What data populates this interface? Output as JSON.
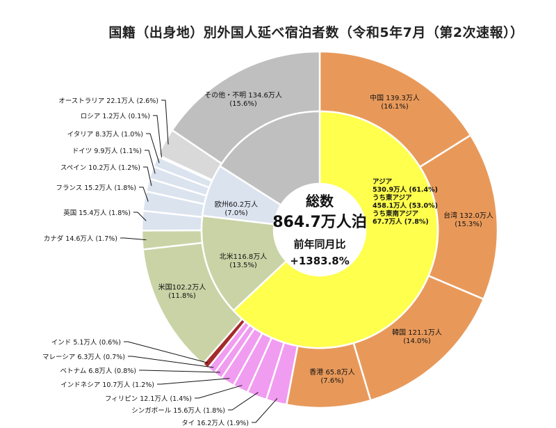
{
  "chart_data": {
    "type": "pie",
    "title": "国籍（出身地）別外国人延べ宿泊者数（令和5年7月（第2次速報））",
    "center": {
      "label": "総数",
      "total": "864.7万人泊",
      "compare_label": "前年同月比",
      "compare_value": "+1383.8%"
    },
    "inner_ring": [
      {
        "id": "asia",
        "lines": [
          "アジア",
          "530.9万人 (61.4%)",
          "うち東アジア",
          "458.1万人 (53.0%)",
          "うち東南アジア",
          "67.7万人 (7.8%)"
        ],
        "value": 530.9,
        "percent": 61.4,
        "color": "#ffff4d"
      },
      {
        "id": "north-america",
        "lines": [
          "北米116.8万人",
          "(13.5%)"
        ],
        "value": 116.8,
        "percent": 13.5,
        "color": "#c9d3a6"
      },
      {
        "id": "europe",
        "lines": [
          "欧州60.2万人",
          "(7.0%)"
        ],
        "value": 60.2,
        "percent": 7.0,
        "color": "#dbe3ef"
      },
      {
        "id": "other",
        "lines": [
          "その他・不明 134.6万人",
          "(15.6%)"
        ],
        "value": 134.6,
        "percent": 15.6,
        "color": "#bfbfbf"
      }
    ],
    "outer_ring": [
      {
        "id": "china",
        "name": "中国",
        "value": 139.3,
        "percent": 16.1,
        "label": "中国 139.3万人",
        "sub": "(16.1%)",
        "color": "#e8995a"
      },
      {
        "id": "taiwan",
        "name": "台湾",
        "value": 132.0,
        "percent": 15.3,
        "label": "台湾 132.0万人",
        "sub": "(15.3%)",
        "color": "#e8995a"
      },
      {
        "id": "korea",
        "name": "韓国",
        "value": 121.1,
        "percent": 14.0,
        "label": "韓国 121.1万人",
        "sub": "(14.0%)",
        "color": "#e8995a"
      },
      {
        "id": "hongkong",
        "name": "香港",
        "value": 65.8,
        "percent": 7.6,
        "label": "香港 65.8万人",
        "sub": "(7.6%)",
        "color": "#e8995a"
      },
      {
        "id": "thailand",
        "name": "タイ",
        "value": 16.2,
        "percent": 1.9,
        "label": "タイ 16.2万人 (1.9%)",
        "color": "#f09cf0"
      },
      {
        "id": "singapore",
        "name": "シンガポール",
        "value": 15.6,
        "percent": 1.8,
        "label": "シンガポール 15.6万人 (1.8%)",
        "color": "#f09cf0"
      },
      {
        "id": "philippines",
        "name": "フィリピン",
        "value": 12.1,
        "percent": 1.4,
        "label": "フィリピン 12.1万人 (1.4%)",
        "color": "#f09cf0"
      },
      {
        "id": "indonesia",
        "name": "インドネシア",
        "value": 10.7,
        "percent": 1.2,
        "label": "インドネシア 10.7万人 (1.2%)",
        "color": "#f09cf0"
      },
      {
        "id": "vietnam",
        "name": "ベトナム",
        "value": 6.8,
        "percent": 0.8,
        "label": "ベトナム 6.8万人 (0.8%)",
        "color": "#f09cf0"
      },
      {
        "id": "malaysia",
        "name": "マレーシア",
        "value": 6.3,
        "percent": 0.7,
        "label": "マレーシア 6.3万人 (0.7%)",
        "color": "#f09cf0"
      },
      {
        "id": "india",
        "name": "インド",
        "value": 5.1,
        "percent": 0.6,
        "label": "インド 5.1万人 (0.6%)",
        "color": "#a52a2a"
      },
      {
        "id": "usa",
        "name": "米国",
        "value": 102.2,
        "percent": 11.8,
        "label": "米国102.2万人",
        "sub": "(11.8%)",
        "color": "#c9d3a6"
      },
      {
        "id": "canada",
        "name": "カナダ",
        "value": 14.6,
        "percent": 1.7,
        "label": "カナダ 14.6万人 (1.7%)",
        "color": "#c9d3a6"
      },
      {
        "id": "uk",
        "name": "英国",
        "value": 15.4,
        "percent": 1.8,
        "label": "英国 15.4万人 (1.8%)",
        "color": "#dbe3ef"
      },
      {
        "id": "france",
        "name": "フランス",
        "value": 15.2,
        "percent": 1.8,
        "label": "フランス 15.2万人 (1.8%)",
        "color": "#dbe3ef"
      },
      {
        "id": "spain",
        "name": "スペイン",
        "value": 10.2,
        "percent": 1.2,
        "label": "スペイン 10.2万人 (1.2%)",
        "color": "#dbe3ef"
      },
      {
        "id": "germany",
        "name": "ドイツ",
        "value": 9.9,
        "percent": 1.1,
        "label": "ドイツ 9.9万人 (1.1%)",
        "color": "#dbe3ef"
      },
      {
        "id": "italy",
        "name": "イタリア",
        "value": 8.3,
        "percent": 1.0,
        "label": "イタリア 8.3万人 (1.0%)",
        "color": "#dbe3ef"
      },
      {
        "id": "russia",
        "name": "ロシア",
        "value": 1.2,
        "percent": 0.1,
        "label": "ロシア 1.2万人 (0.1%)",
        "color": "#dbe3ef"
      },
      {
        "id": "australia",
        "name": "オーストラリア",
        "value": 22.1,
        "percent": 2.6,
        "label": "オーストラリア 22.1万人 (2.6%)",
        "color": "#d9d9d9"
      },
      {
        "id": "other",
        "name": "その他・不明",
        "value": 134.6,
        "percent": 15.6,
        "label": "その他・不明 134.6万人",
        "sub": "(15.6%)",
        "color": "#bfbfbf"
      }
    ]
  }
}
